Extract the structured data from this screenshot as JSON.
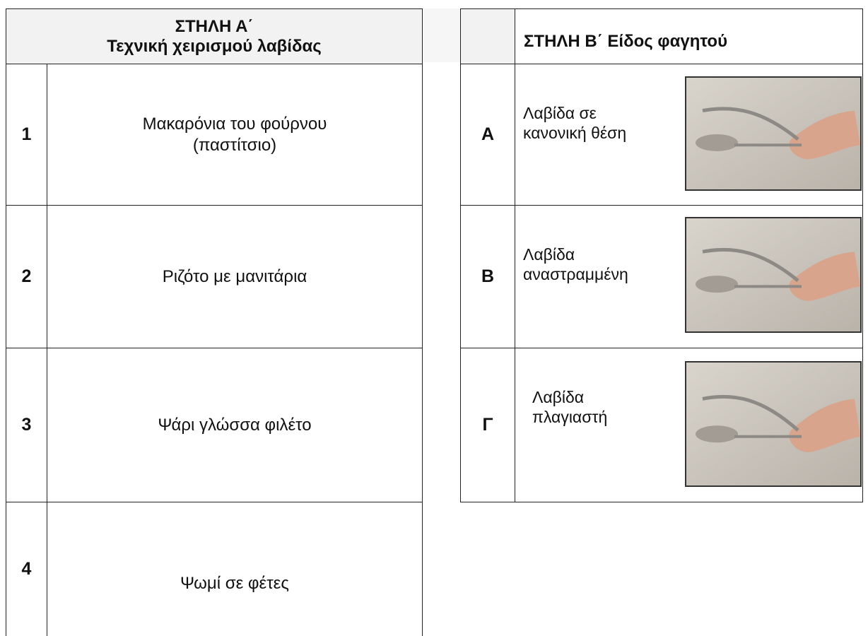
{
  "column_a": {
    "header": [
      "ΣΤΗΛΗ Α΄",
      "Τεχνική χειρισμού λαβίδας"
    ],
    "rows": [
      {
        "number": "1",
        "text": [
          "Μακαρόνια του φούρνου",
          "(παστίτσιο)"
        ]
      },
      {
        "number": "2",
        "text": [
          "Ριζότο με μανιτάρια"
        ]
      },
      {
        "number": "3",
        "text": [
          "Ψάρι γλώσσα φιλέτο"
        ]
      },
      {
        "number": "4",
        "text": [
          "Ψωμί σε φέτες"
        ]
      }
    ]
  },
  "column_b": {
    "header": "ΣΤΗΛΗ Β΄ Είδος φαγητού",
    "rows": [
      {
        "letter": "Α",
        "text": [
          "Λαβίδα σε",
          "κανονική θέση"
        ]
      },
      {
        "letter": "Β",
        "text": [
          "Λαβίδα",
          "αναστραμμένη"
        ]
      },
      {
        "letter": "Γ",
        "text": [
          "Λαβίδα",
          "πλαγιαστή"
        ]
      }
    ]
  }
}
